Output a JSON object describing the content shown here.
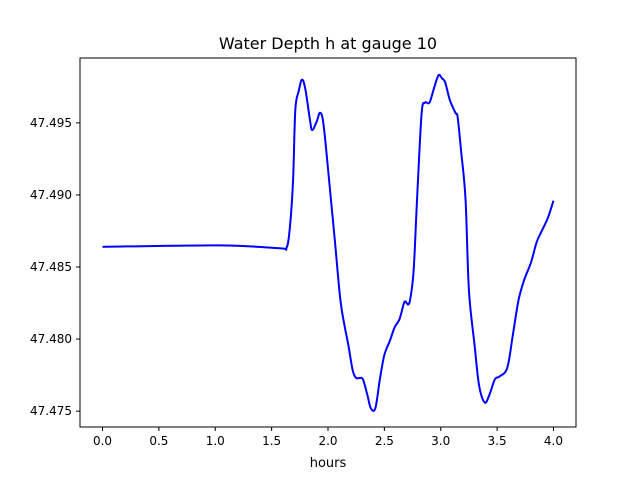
{
  "chart_data": {
    "type": "line",
    "title": "Water Depth h at gauge 10",
    "xlabel": "hours",
    "ylabel": "",
    "xlim": [
      -0.2,
      4.2
    ],
    "ylim": [
      47.4739,
      47.4995
    ],
    "grid": false,
    "xticks": [
      0.0,
      0.5,
      1.0,
      1.5,
      2.0,
      2.5,
      3.0,
      3.5,
      4.0
    ],
    "xtick_labels": [
      "0.0",
      "0.5",
      "1.0",
      "1.5",
      "2.0",
      "2.5",
      "3.0",
      "3.5",
      "4.0"
    ],
    "yticks": [
      47.475,
      47.48,
      47.485,
      47.49,
      47.495
    ],
    "ytick_labels": [
      "47.475",
      "47.480",
      "47.485",
      "47.490",
      "47.495"
    ],
    "series": [
      {
        "name": "h",
        "color": "#0000ff",
        "x": [
          0,
          1.04,
          1.57,
          1.63,
          1.66,
          1.69,
          1.71,
          1.74,
          1.77,
          1.8,
          1.84,
          1.86,
          1.9,
          1.93,
          1.96,
          2.01,
          2.06,
          2.11,
          2.15,
          2.18,
          2.22,
          2.25,
          2.28,
          2.31,
          2.35,
          2.38,
          2.42,
          2.46,
          2.5,
          2.55,
          2.59,
          2.63,
          2.65,
          2.68,
          2.71,
          2.73,
          2.76,
          2.79,
          2.83,
          2.86,
          2.9,
          2.94,
          2.98,
          3.01,
          3.04,
          3.08,
          3.13,
          3.15,
          3.18,
          3.22,
          3.25,
          3.3,
          3.34,
          3.39,
          3.43,
          3.48,
          3.52,
          3.59,
          3.64,
          3.69,
          3.74,
          3.8,
          3.85,
          3.89,
          3.95,
          4.0
        ],
        "y": [
          47.4864,
          47.4865,
          47.4863,
          47.4863,
          47.4876,
          47.491,
          47.4959,
          47.4972,
          47.498,
          47.4973,
          47.4952,
          47.4945,
          47.4951,
          47.4957,
          47.4949,
          47.491,
          47.4869,
          47.4827,
          47.4808,
          47.4796,
          47.4778,
          47.4773,
          47.4773,
          47.4772,
          47.4761,
          47.4752,
          47.4752,
          47.4772,
          47.4789,
          47.4799,
          47.4808,
          47.4813,
          47.4818,
          47.4826,
          47.4824,
          47.4828,
          47.4848,
          47.4897,
          47.4956,
          47.4964,
          47.4964,
          47.4974,
          47.4983,
          47.4981,
          47.4978,
          47.4966,
          47.4957,
          47.4954,
          47.4931,
          47.4897,
          47.4834,
          47.4796,
          47.4768,
          47.4756,
          47.4761,
          47.4772,
          47.4774,
          47.478,
          47.4803,
          47.4827,
          47.4841,
          47.4853,
          47.4867,
          47.4874,
          47.4884,
          47.4896
        ]
      }
    ]
  }
}
